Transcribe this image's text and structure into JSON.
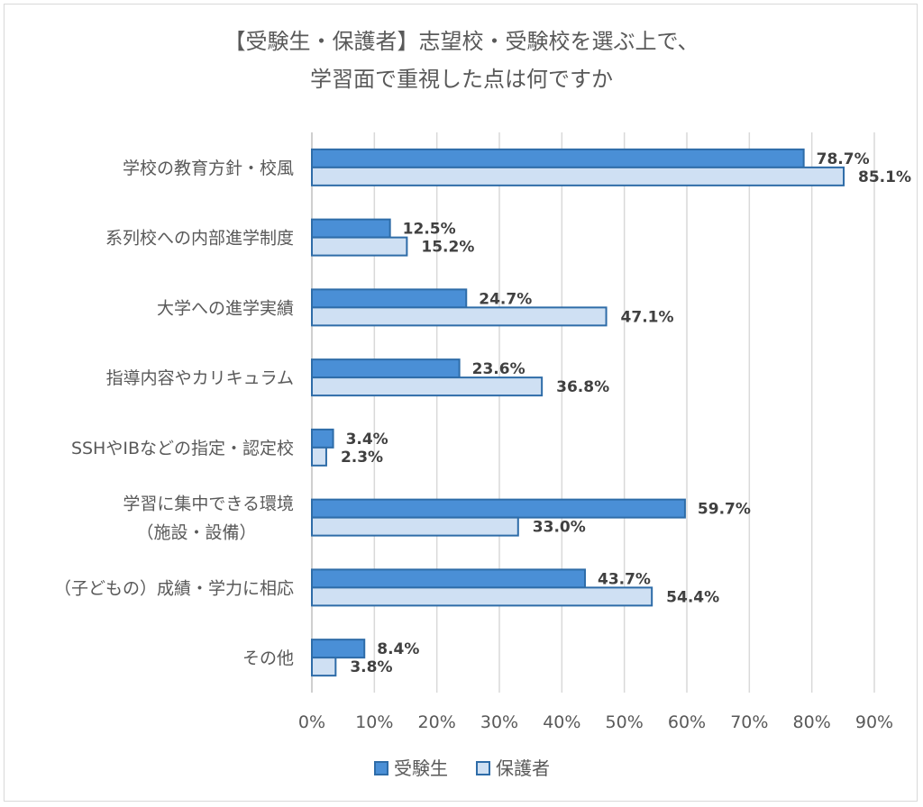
{
  "chart_data": {
    "type": "bar",
    "orientation": "horizontal",
    "title": [
      "【受験生・保護者】志望校・受験校を選ぶ上で、",
      "学習面で重視した点は何ですか"
    ],
    "categories": [
      [
        "学校の教育方針・校風"
      ],
      [
        "系列校への内部進学制度"
      ],
      [
        "大学への進学実績"
      ],
      [
        "指導内容やカリキュラム"
      ],
      [
        "SSHやIBなどの指定・認定校"
      ],
      [
        "学習に集中できる環境",
        "（施設・設備）"
      ],
      [
        "（子どもの）成績・学力に相応"
      ],
      [
        "その他"
      ]
    ],
    "series": [
      {
        "name": "受験生",
        "color": "#4a8fd6",
        "values": [
          78.7,
          12.5,
          24.7,
          23.6,
          3.4,
          59.7,
          43.7,
          8.4
        ]
      },
      {
        "name": "保護者",
        "color": "#cfe0f3",
        "values": [
          85.1,
          15.2,
          47.1,
          36.8,
          2.3,
          33.0,
          54.4,
          3.8
        ]
      }
    ],
    "value_format": "percent_1dp",
    "xlim": [
      0,
      90
    ],
    "xticks": [
      "0%",
      "10%",
      "20%",
      "30%",
      "40%",
      "50%",
      "60%",
      "70%",
      "80%",
      "90%"
    ],
    "grid": true,
    "legend_position": "bottom",
    "bar_border_color": "#2e6ca8",
    "grid_color": "#d9d9d9"
  }
}
